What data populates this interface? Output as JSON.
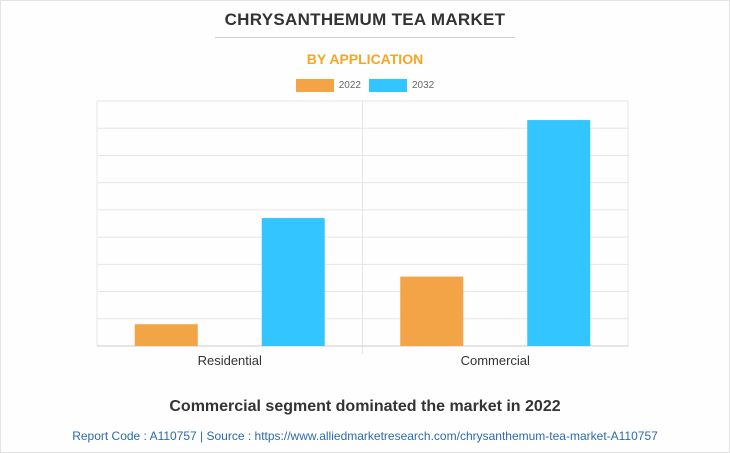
{
  "header": {
    "title": "CHRYSANTHEMUM TEA MARKET",
    "subtitle": "BY APPLICATION"
  },
  "colors": {
    "series_2022": "#f2a446",
    "series_2032": "#33c5ff",
    "grid": "#e6e6e6",
    "axis": "#cccccc"
  },
  "chart_data": {
    "type": "bar",
    "categories": [
      "Residential",
      "Commercial"
    ],
    "series": [
      {
        "name": "2022",
        "values": [
          0.8,
          2.55
        ]
      },
      {
        "name": "2032",
        "values": [
          4.7,
          8.3
        ]
      }
    ],
    "title": "CHRYSANTHEMUM TEA MARKET",
    "subtitle": "BY APPLICATION",
    "xlabel": "",
    "ylabel": "",
    "ylim": [
      0,
      9
    ],
    "grid": true,
    "legend": "top-center"
  },
  "headline": "Commercial segment dominated the market in 2022",
  "footer": {
    "text": "Report Code : A110757  |  Source : https://www.alliedmarketresearch.com/chrysanthemum-tea-market-A110757"
  }
}
